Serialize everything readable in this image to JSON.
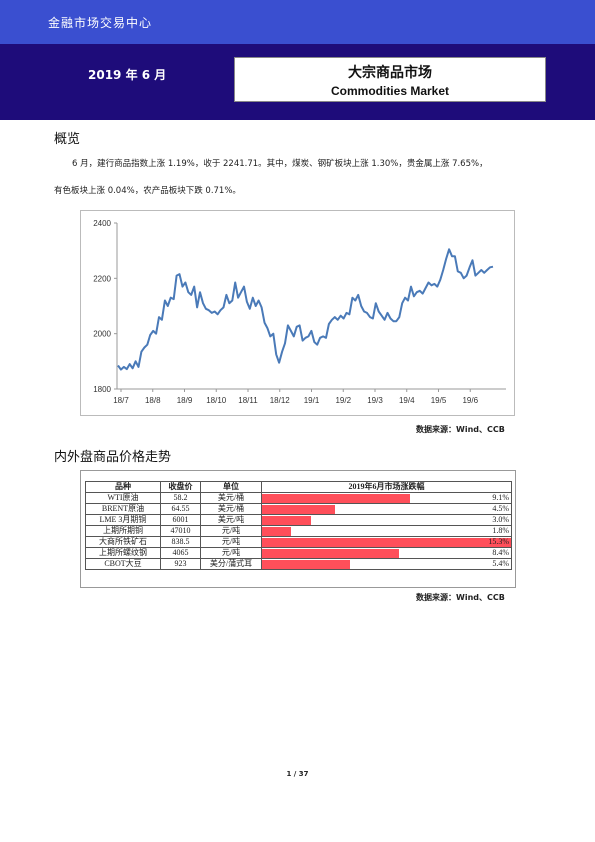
{
  "header": {
    "org": "金融市场交易中心",
    "date": "2019 年 6 月",
    "title_cn": "大宗商品市场",
    "title_en": "Commodities Market"
  },
  "overview": {
    "heading": "概览",
    "line1": "6 月，建行商品指数上涨 1.19%，收于 2241.71。其中，煤炭、钢矿板块上涨 1.30%，贵金属上涨 7.65%，",
    "line2": "有色板块上涨 0.04%，农产品板块下跌 0.71%。"
  },
  "chart_data": {
    "type": "line",
    "ylim": [
      1800,
      2400
    ],
    "yticks": [
      "1800",
      "2000",
      "2200",
      "2400"
    ],
    "xticks": [
      "18/7",
      "18/8",
      "18/9",
      "18/10",
      "18/11",
      "18/12",
      "19/1",
      "19/2",
      "19/3",
      "19/4",
      "19/5",
      "19/6"
    ],
    "color": "#4a7ab8",
    "series": [
      {
        "values": [
          1885,
          1870,
          1880,
          1872,
          1890,
          1875,
          1900,
          1880,
          1935,
          1950,
          1960,
          1995,
          2010,
          2000,
          2060,
          2050,
          2120,
          2100,
          2130,
          2125,
          2210,
          2215,
          2170,
          2185,
          2150,
          2140,
          2170,
          2095,
          2150,
          2110,
          2090,
          2085,
          2075,
          2080,
          2070,
          2085,
          2095,
          2140,
          2110,
          2120,
          2185,
          2130,
          2150,
          2170,
          2115,
          2090,
          2130,
          2100,
          2120,
          2095,
          2040,
          2020,
          1990,
          2000,
          1925,
          1895,
          1935,
          1965,
          2030,
          2010,
          1990,
          2025,
          2030,
          1975,
          1985,
          1990,
          2010,
          1970,
          1960,
          1985,
          1990,
          1985,
          2035,
          2050,
          2060,
          2050,
          2065,
          2055,
          2075,
          2070,
          2130,
          2120,
          2140,
          2100,
          2080,
          2075,
          2060,
          2055,
          2110,
          2080,
          2065,
          2050,
          2075,
          2055,
          2045,
          2045,
          2060,
          2110,
          2130,
          2120,
          2170,
          2135,
          2150,
          2155,
          2145,
          2165,
          2185,
          2175,
          2180,
          2170,
          2195,
          2230,
          2270,
          2305,
          2280,
          2280,
          2225,
          2220,
          2200,
          2210,
          2240,
          2265,
          2210,
          2220,
          2230,
          2220,
          2230,
          2240,
          2242
        ]
      }
    ]
  },
  "chart_source": "数据来源：Wind、CCB",
  "prices": {
    "heading": "内外盘商品价格走势",
    "headers": [
      "品种",
      "收盘价",
      "单位",
      "2019年6月市场涨跌幅"
    ],
    "max_change": 15.3,
    "rows": [
      {
        "name": "WTI原油",
        "price": "58.2",
        "unit": "美元/桶",
        "change": "9.1%",
        "value": 9.1
      },
      {
        "name": "BRENT原油",
        "price": "64.55",
        "unit": "美元/桶",
        "change": "4.5%",
        "value": 4.5
      },
      {
        "name": "LME 3月期铜",
        "price": "6001",
        "unit": "美元/吨",
        "change": "3.0%",
        "value": 3.0
      },
      {
        "name": "上期所期铜",
        "price": "47010",
        "unit": "元/吨",
        "change": "1.8%",
        "value": 1.8
      },
      {
        "name": "大商所铁矿石",
        "price": "838.5",
        "unit": "元/吨",
        "change": "15.3%",
        "value": 15.3
      },
      {
        "name": "上期所螺纹钢",
        "price": "4065",
        "unit": "元/吨",
        "change": "8.4%",
        "value": 8.4
      },
      {
        "name": "CBOT大豆",
        "price": "923",
        "unit": "美分/蒲式耳",
        "change": "5.4%",
        "value": 5.4
      }
    ]
  },
  "prices_source": "数据来源：Wind、CCB",
  "footer": {
    "page": "1 / 37"
  }
}
